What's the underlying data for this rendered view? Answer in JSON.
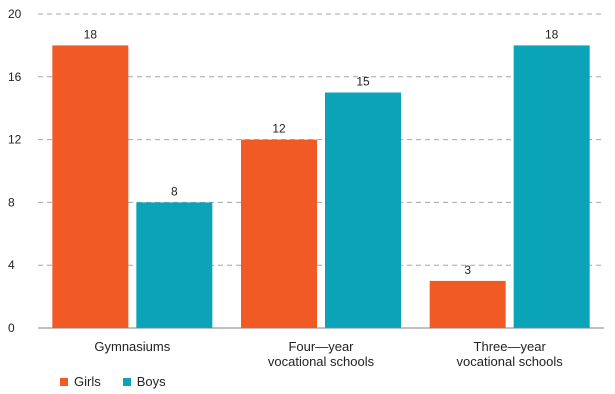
{
  "chart_data": {
    "type": "bar",
    "categories": [
      [
        "Gymnasiums"
      ],
      [
        "Four—year",
        "vocational schools"
      ],
      [
        "Three—year",
        "vocational schools"
      ]
    ],
    "series": [
      {
        "name": "Girls",
        "color": "#f15a24",
        "values": [
          18,
          12,
          3
        ]
      },
      {
        "name": "Boys",
        "color": "#0aa3b8",
        "values": [
          8,
          15,
          18
        ]
      }
    ],
    "ylim": [
      0,
      20
    ],
    "yticks": [
      0,
      4,
      8,
      12,
      16,
      20
    ],
    "grid": true,
    "data_labels": true,
    "legend_position": "bottom-left",
    "title": "",
    "xlabel": "",
    "ylabel": ""
  }
}
